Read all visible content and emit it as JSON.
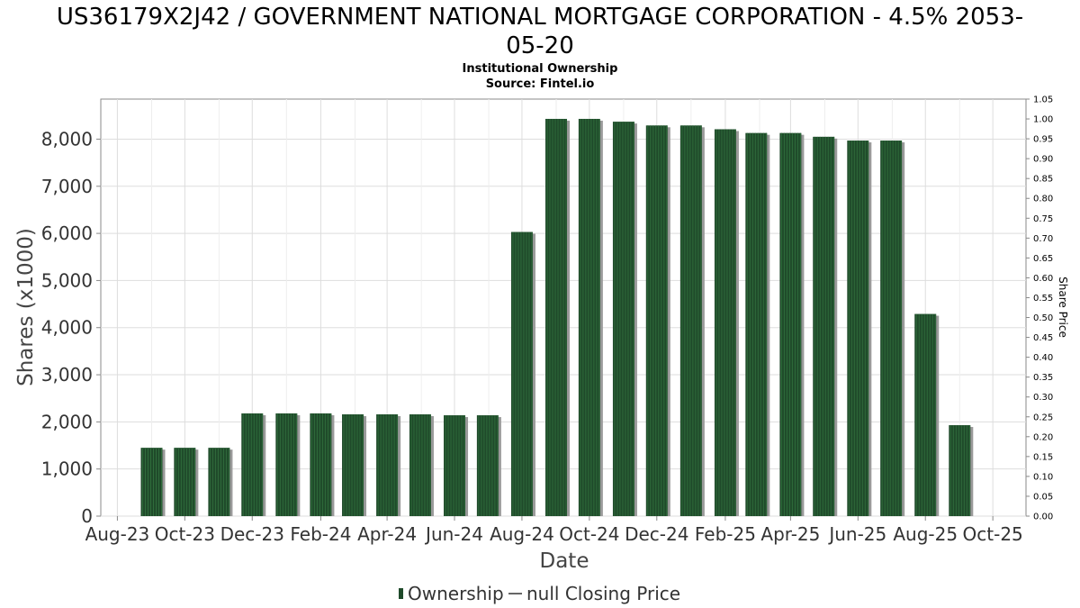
{
  "chart_data": {
    "type": "bar",
    "title_line1": "US36179X2J42 / GOVERNMENT NATIONAL MORTGAGE CORPORATION - 4.5% 2053-",
    "title_line2": "05-20",
    "subtitle1": "Institutional Ownership",
    "subtitle2": "Source: Fintel.io",
    "xlabel": "Date",
    "ylabel": "Shares (x1000)",
    "y2label": "Share Price",
    "ylim": [
      0,
      8850
    ],
    "y2lim": [
      0,
      1.05
    ],
    "yticks": [
      0,
      1000,
      2000,
      3000,
      4000,
      5000,
      6000,
      7000,
      8000
    ],
    "ytick_labels": [
      "0",
      "1,000",
      "2,000",
      "3,000",
      "4,000",
      "5,000",
      "6,000",
      "7,000",
      "8,000"
    ],
    "y2ticks": [
      0,
      0.05,
      0.1,
      0.15,
      0.2,
      0.25,
      0.3,
      0.35,
      0.4,
      0.45,
      0.5,
      0.55,
      0.6,
      0.65,
      0.7,
      0.75,
      0.8,
      0.85,
      0.9,
      0.95,
      1.0,
      1.05
    ],
    "y2tick_labels": [
      "0.00",
      "0.05",
      "0.10",
      "0.15",
      "0.20",
      "0.25",
      "0.30",
      "0.35",
      "0.40",
      "0.45",
      "0.50",
      "0.55",
      "0.60",
      "0.65",
      "0.70",
      "0.75",
      "0.80",
      "0.85",
      "0.90",
      "0.95",
      "1.00",
      "1.05"
    ],
    "xlim": [
      "2023-07-17",
      "2025-10-31"
    ],
    "x_tick_dates": [
      "2023-08-01",
      "2023-10-01",
      "2023-12-01",
      "2024-02-01",
      "2024-04-01",
      "2024-06-01",
      "2024-08-01",
      "2024-10-01",
      "2024-12-01",
      "2025-02-01",
      "2025-04-01",
      "2025-06-01",
      "2025-08-01",
      "2025-10-01"
    ],
    "x_tick_labels": [
      "Aug-23",
      "Oct-23",
      "Dec-23",
      "Feb-24",
      "Apr-24",
      "Jun-24",
      "Aug-24",
      "Oct-24",
      "Dec-24",
      "Feb-25",
      "Apr-25",
      "Jun-25",
      "Aug-25",
      "Oct-25"
    ],
    "grid": true,
    "legend_position": "bottom",
    "series": [
      {
        "name": "Ownership",
        "color": "#1f4a2a",
        "x": [
          "2023-09-01",
          "2023-10-01",
          "2023-11-01",
          "2023-12-01",
          "2024-01-01",
          "2024-02-01",
          "2024-03-01",
          "2024-04-01",
          "2024-05-01",
          "2024-06-01",
          "2024-07-01",
          "2024-08-01",
          "2024-09-01",
          "2024-10-01",
          "2024-11-01",
          "2024-12-01",
          "2025-01-01",
          "2025-02-01",
          "2025-03-01",
          "2025-04-01",
          "2025-05-01",
          "2025-06-01",
          "2025-07-01",
          "2025-08-01",
          "2025-09-01"
        ],
        "values": [
          1450,
          1450,
          1450,
          2180,
          2180,
          2180,
          2160,
          2160,
          2160,
          2140,
          2140,
          6030,
          8430,
          8430,
          8370,
          8290,
          8290,
          8210,
          8130,
          8130,
          8050,
          7970,
          7970,
          4290,
          1930
        ]
      },
      {
        "name": "null Closing Price",
        "color": "#333333",
        "values": []
      }
    ]
  }
}
